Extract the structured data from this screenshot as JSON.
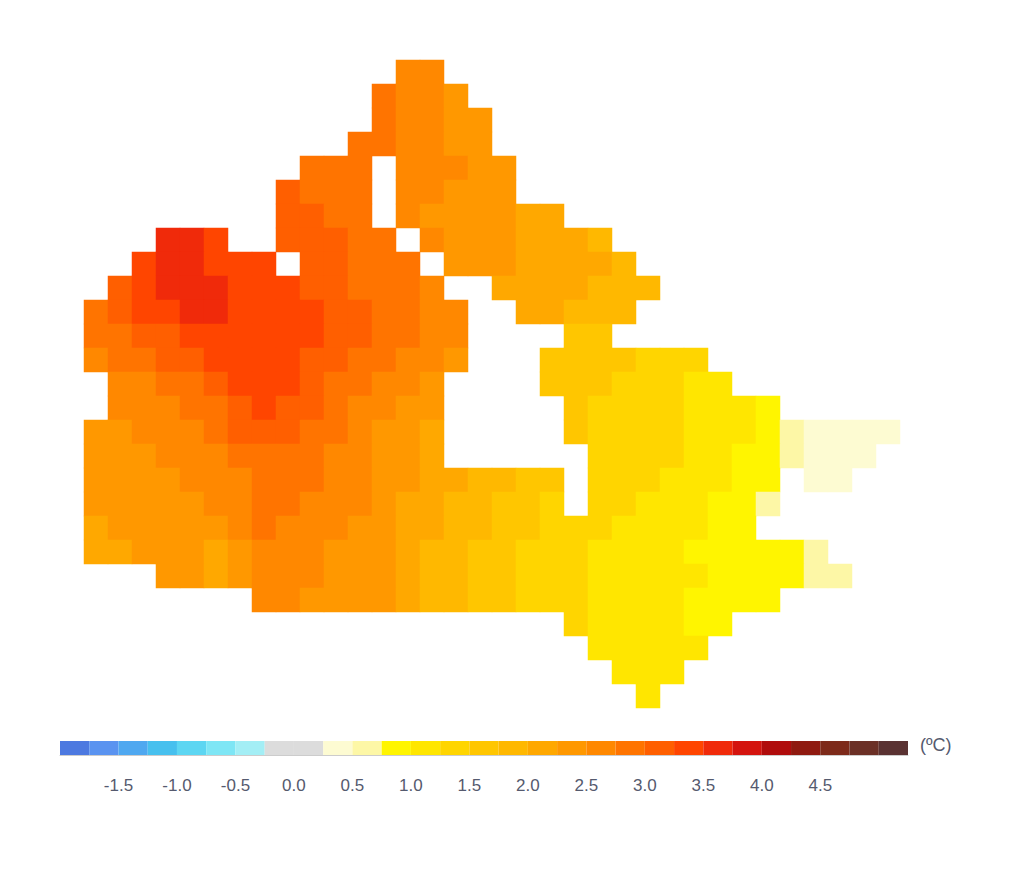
{
  "chart_data": {
    "type": "heatmap",
    "tick_labels": false,
    "cells": [
      [
        null,
        null,
        null,
        null,
        null,
        null,
        null,
        null,
        null,
        null,
        null,
        null,
        null,
        2.6,
        2.6,
        null,
        null,
        null,
        null,
        null,
        null,
        null,
        null,
        null,
        null,
        null,
        null,
        null,
        null,
        null,
        null,
        null,
        null,
        null
      ],
      [
        null,
        null,
        null,
        null,
        null,
        null,
        null,
        null,
        null,
        null,
        null,
        null,
        2.9,
        2.6,
        2.6,
        2.4,
        null,
        null,
        null,
        null,
        null,
        null,
        null,
        null,
        null,
        null,
        null,
        null,
        null,
        null,
        null,
        null,
        null,
        null
      ],
      [
        null,
        null,
        null,
        null,
        null,
        null,
        null,
        null,
        null,
        null,
        null,
        null,
        2.9,
        2.6,
        2.6,
        2.4,
        2.4,
        null,
        null,
        null,
        null,
        null,
        null,
        null,
        null,
        null,
        null,
        null,
        null,
        null,
        null,
        null,
        null,
        null
      ],
      [
        null,
        null,
        null,
        null,
        null,
        null,
        null,
        null,
        null,
        null,
        null,
        2.9,
        2.9,
        2.6,
        2.6,
        2.4,
        2.4,
        null,
        null,
        null,
        null,
        null,
        null,
        null,
        null,
        null,
        null,
        null,
        null,
        null,
        null,
        null,
        null,
        null
      ],
      [
        null,
        null,
        null,
        null,
        null,
        null,
        null,
        null,
        null,
        2.9,
        2.9,
        2.9,
        null,
        2.6,
        2.6,
        2.6,
        2.4,
        2.4,
        null,
        null,
        null,
        null,
        null,
        null,
        null,
        null,
        null,
        null,
        null,
        null,
        null,
        null,
        null,
        null
      ],
      [
        null,
        null,
        null,
        null,
        null,
        null,
        null,
        null,
        3.1,
        2.9,
        2.9,
        2.9,
        null,
        2.6,
        2.6,
        2.4,
        2.4,
        2.4,
        null,
        null,
        null,
        null,
        null,
        null,
        null,
        null,
        null,
        null,
        null,
        null,
        null,
        null,
        null,
        null
      ],
      [
        null,
        null,
        null,
        null,
        null,
        null,
        null,
        null,
        3.1,
        3.1,
        2.9,
        2.9,
        null,
        2.6,
        2.4,
        2.4,
        2.4,
        2.4,
        2.1,
        2.1,
        null,
        null,
        null,
        null,
        null,
        null,
        null,
        null,
        null,
        null,
        null,
        null,
        null,
        null
      ],
      [
        null,
        null,
        null,
        3.6,
        3.6,
        3.4,
        null,
        null,
        3.1,
        3.1,
        3.1,
        2.9,
        2.9,
        null,
        2.6,
        2.4,
        2.4,
        2.4,
        2.1,
        2.1,
        2.1,
        1.9,
        null,
        null,
        null,
        null,
        null,
        null,
        null,
        null,
        null,
        null,
        null,
        null
      ],
      [
        null,
        null,
        3.4,
        3.6,
        3.6,
        3.4,
        3.4,
        3.4,
        null,
        3.1,
        3.1,
        2.9,
        2.9,
        2.9,
        null,
        2.4,
        2.4,
        2.4,
        2.1,
        2.1,
        2.1,
        2.1,
        1.9,
        null,
        null,
        null,
        null,
        null,
        null,
        null,
        null,
        null,
        null,
        null
      ],
      [
        null,
        3.1,
        3.4,
        3.6,
        3.6,
        3.6,
        3.4,
        3.4,
        3.4,
        3.1,
        3.1,
        2.9,
        2.9,
        2.9,
        2.6,
        null,
        null,
        2.1,
        2.1,
        2.1,
        2.1,
        1.9,
        1.9,
        1.9,
        null,
        null,
        null,
        null,
        null,
        null,
        null,
        null,
        null,
        null
      ],
      [
        2.9,
        3.1,
        3.4,
        3.4,
        3.6,
        3.6,
        3.4,
        3.4,
        3.4,
        3.4,
        3.1,
        3.1,
        2.9,
        2.9,
        2.6,
        2.6,
        null,
        null,
        2.1,
        2.1,
        1.9,
        1.9,
        1.9,
        null,
        null,
        null,
        null,
        null,
        null,
        null,
        null,
        null,
        null,
        null
      ],
      [
        2.9,
        2.9,
        3.1,
        3.1,
        3.4,
        3.4,
        3.4,
        3.4,
        3.4,
        3.4,
        3.1,
        3.1,
        2.9,
        2.9,
        2.6,
        2.6,
        null,
        null,
        null,
        null,
        1.6,
        1.6,
        null,
        null,
        null,
        null,
        null,
        null,
        null,
        null,
        null,
        null,
        null,
        null
      ],
      [
        2.6,
        2.9,
        2.9,
        3.1,
        3.1,
        3.4,
        3.4,
        3.4,
        3.4,
        3.1,
        3.1,
        2.9,
        2.9,
        2.6,
        2.6,
        2.4,
        null,
        null,
        null,
        1.6,
        1.6,
        1.6,
        1.6,
        1.4,
        1.4,
        1.4,
        null,
        null,
        null,
        null,
        null,
        null,
        null,
        null
      ],
      [
        null,
        2.6,
        2.6,
        2.9,
        2.9,
        3.1,
        3.4,
        3.4,
        3.4,
        3.1,
        2.9,
        2.9,
        2.6,
        2.6,
        2.4,
        null,
        null,
        null,
        null,
        1.6,
        1.6,
        1.6,
        1.4,
        1.4,
        1.4,
        1.1,
        1.1,
        null,
        null,
        null,
        null,
        null,
        null,
        null
      ],
      [
        null,
        2.6,
        2.6,
        2.6,
        2.9,
        2.9,
        3.1,
        3.4,
        3.1,
        3.1,
        2.9,
        2.6,
        2.6,
        2.4,
        2.4,
        null,
        null,
        null,
        null,
        null,
        1.6,
        1.4,
        1.4,
        1.4,
        1.4,
        1.1,
        1.1,
        1.1,
        0.9,
        null,
        null,
        null,
        null,
        null
      ],
      [
        2.4,
        2.4,
        2.6,
        2.6,
        2.6,
        2.9,
        3.1,
        3.1,
        3.1,
        2.9,
        2.9,
        2.6,
        2.4,
        2.4,
        2.1,
        null,
        null,
        null,
        null,
        null,
        1.6,
        1.4,
        1.4,
        1.4,
        1.4,
        1.1,
        1.1,
        1.1,
        0.9,
        0.6,
        0.4,
        0.4,
        0.4,
        0.4
      ],
      [
        2.4,
        2.4,
        2.4,
        2.6,
        2.6,
        2.6,
        2.9,
        2.9,
        2.9,
        2.9,
        2.6,
        2.6,
        2.4,
        2.4,
        2.1,
        null,
        null,
        null,
        null,
        null,
        null,
        1.4,
        1.4,
        1.4,
        1.4,
        1.1,
        1.1,
        0.9,
        0.9,
        0.6,
        0.4,
        0.4,
        0.4,
        null
      ],
      [
        2.4,
        2.4,
        2.4,
        2.4,
        2.6,
        2.6,
        2.6,
        2.9,
        2.9,
        2.9,
        2.6,
        2.6,
        2.4,
        2.4,
        2.1,
        2.1,
        1.9,
        1.9,
        1.6,
        1.6,
        null,
        1.4,
        1.4,
        1.4,
        1.1,
        1.1,
        1.1,
        0.9,
        0.9,
        null,
        0.4,
        0.4,
        null,
        null
      ],
      [
        2.4,
        2.4,
        2.4,
        2.4,
        2.4,
        2.6,
        2.6,
        2.9,
        2.9,
        2.6,
        2.6,
        2.6,
        2.4,
        2.1,
        2.1,
        1.9,
        1.9,
        1.6,
        1.6,
        1.4,
        null,
        1.4,
        1.4,
        1.1,
        1.1,
        1.1,
        0.9,
        0.9,
        0.6,
        null,
        null,
        null,
        null,
        null
      ],
      [
        2.1,
        2.4,
        2.4,
        2.4,
        2.4,
        2.4,
        2.6,
        2.9,
        2.6,
        2.6,
        2.6,
        2.4,
        2.4,
        2.1,
        2.1,
        1.9,
        1.9,
        1.6,
        1.6,
        1.4,
        1.4,
        1.4,
        1.1,
        1.1,
        1.1,
        1.1,
        0.9,
        0.9,
        null,
        null,
        null,
        null,
        null,
        null
      ],
      [
        2.1,
        2.1,
        2.4,
        2.4,
        2.4,
        2.1,
        2.4,
        2.6,
        2.6,
        2.6,
        2.4,
        2.4,
        2.4,
        2.1,
        1.9,
        1.9,
        1.6,
        1.6,
        1.4,
        1.4,
        1.4,
        1.1,
        1.1,
        1.1,
        1.1,
        0.9,
        0.9,
        0.9,
        0.9,
        0.9,
        0.6,
        null,
        null,
        null
      ],
      [
        null,
        null,
        null,
        2.4,
        2.4,
        2.1,
        2.4,
        2.6,
        2.6,
        2.6,
        2.4,
        2.4,
        2.4,
        2.1,
        1.9,
        1.9,
        1.6,
        1.6,
        1.4,
        1.4,
        1.4,
        1.1,
        1.1,
        1.1,
        1.1,
        1.1,
        0.9,
        0.9,
        0.9,
        0.9,
        0.6,
        0.6,
        null,
        null
      ],
      [
        null,
        null,
        null,
        null,
        null,
        null,
        null,
        2.6,
        2.6,
        2.4,
        2.4,
        2.4,
        2.4,
        2.1,
        1.9,
        1.9,
        1.6,
        1.6,
        1.4,
        1.4,
        1.4,
        1.1,
        1.1,
        1.1,
        1.1,
        0.9,
        0.9,
        0.9,
        0.9,
        null,
        null,
        null,
        null,
        null
      ],
      [
        null,
        null,
        null,
        null,
        null,
        null,
        null,
        null,
        null,
        null,
        null,
        null,
        null,
        null,
        null,
        null,
        null,
        null,
        null,
        null,
        1.4,
        1.1,
        1.1,
        1.1,
        1.1,
        0.9,
        0.9,
        null,
        null,
        null,
        null,
        null,
        null,
        null
      ],
      [
        null,
        null,
        null,
        null,
        null,
        null,
        null,
        null,
        null,
        null,
        null,
        null,
        null,
        null,
        null,
        null,
        null,
        null,
        null,
        null,
        null,
        1.1,
        1.1,
        1.1,
        1.1,
        1.1,
        null,
        null,
        null,
        null,
        null,
        null,
        null,
        null
      ],
      [
        null,
        null,
        null,
        null,
        null,
        null,
        null,
        null,
        null,
        null,
        null,
        null,
        null,
        null,
        null,
        null,
        null,
        null,
        null,
        null,
        null,
        null,
        1.1,
        1.1,
        1.1,
        null,
        null,
        null,
        null,
        null,
        null,
        null,
        null,
        null
      ],
      [
        null,
        null,
        null,
        null,
        null,
        null,
        null,
        null,
        null,
        null,
        null,
        null,
        null,
        null,
        null,
        null,
        null,
        null,
        null,
        null,
        null,
        null,
        null,
        1.1,
        null,
        null,
        null,
        null,
        null,
        null,
        null,
        null,
        null,
        null
      ]
    ],
    "colorbar": {
      "label": "(ºC)",
      "range": [
        -2,
        5.25
      ],
      "ticks": [
        -1.5,
        {
          "value": -1,
          "label": "-1.0"
        },
        -0.5,
        {
          "value": 0,
          "label": "0.0"
        },
        0.5,
        {
          "value": 1,
          "label": "1.0"
        },
        1.5,
        {
          "value": 2,
          "label": "2.0"
        },
        2.5,
        {
          "value": 3,
          "label": "3.0"
        },
        3.5,
        {
          "value": 4,
          "label": "4.0"
        },
        4.5
      ],
      "colors": [
        "#4d79e0",
        "#5a93f0",
        "#4fa8f0",
        "#47c0ee",
        "#5dd6f2",
        "#7ee6f5",
        "#a3eef5",
        "#dcdcdc",
        "#dcdcdc",
        "#fdfbd2",
        "#fdf7a6",
        "#fff500",
        "#ffe600",
        "#ffd500",
        "#ffc600",
        "#ffb800",
        "#ffa800",
        "#ff9800",
        "#ff8800",
        "#ff7400",
        "#ff5f00",
        "#ff4500",
        "#f02a0a",
        "#d4140e",
        "#b00c0c",
        "#8f1a10",
        "#7d2a1a",
        "#6b3026",
        "#5a3232"
      ]
    }
  }
}
